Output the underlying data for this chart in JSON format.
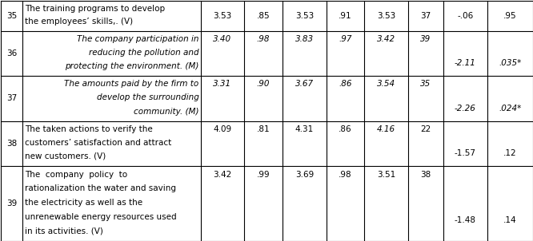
{
  "rows": [
    {
      "num": "35",
      "text_lines": [
        "The training programs to develop",
        "the employees’ skills,. (V)"
      ],
      "italic": false,
      "v1": "3.53",
      "v2": ".85",
      "v3": "3.53",
      "v4": ".91",
      "v5": "3.53",
      "v6": "37",
      "z": "-.06",
      "p": ".95",
      "z_italic": false,
      "p_italic": false,
      "vals_italic": false,
      "v5_italic": false
    },
    {
      "num": "36",
      "text_lines": [
        "The company participation in",
        "reducing the pollution and",
        "protecting the environment. (M)"
      ],
      "italic": true,
      "v1": "3.40",
      "v2": ".98",
      "v3": "3.83",
      "v4": ".97",
      "v5": "3.42",
      "v6": "39",
      "z": "-2.11",
      "p": ".035*",
      "z_italic": true,
      "p_italic": true,
      "vals_italic": true,
      "v5_italic": false
    },
    {
      "num": "37",
      "text_lines": [
        "The amounts paid by the firm to",
        "develop the surrounding",
        "community. (M)"
      ],
      "italic": true,
      "v1": "3.31",
      "v2": ".90",
      "v3": "3.67",
      "v4": ".86",
      "v5": "3.54",
      "v6": "35",
      "z": "-2.26",
      "p": ".024*",
      "z_italic": true,
      "p_italic": true,
      "vals_italic": true,
      "v5_italic": false
    },
    {
      "num": "38",
      "text_lines": [
        "The taken actions to verify the",
        "customers’ satisfaction and attract",
        "new customers. (V)"
      ],
      "italic": false,
      "v1": "4.09",
      "v2": ".81",
      "v3": "4.31",
      "v4": ".86",
      "v5": "4.16",
      "v6": "22",
      "z": "-1.57",
      "p": ".12",
      "z_italic": false,
      "p_italic": false,
      "vals_italic": false,
      "v5_italic": true
    },
    {
      "num": "39",
      "text_lines": [
        "The  company  policy  to",
        "rationalization the water and saving",
        "the electricity as well as the",
        "unrenewable energy resources used",
        "in its activities. (V)"
      ],
      "italic": false,
      "v1": "3.42",
      "v2": ".99",
      "v3": "3.69",
      "v4": ".98",
      "v5": "3.51",
      "v6": "38",
      "z": "-1.48",
      "p": ".14",
      "z_italic": false,
      "p_italic": false,
      "vals_italic": false,
      "v5_italic": false
    }
  ],
  "row_line_counts": [
    2,
    3,
    3,
    3,
    5
  ],
  "bg_color": "#ffffff",
  "border_color": "#000000",
  "text_color": "#000000",
  "font_size": 7.5,
  "font_family": "Times New Roman"
}
